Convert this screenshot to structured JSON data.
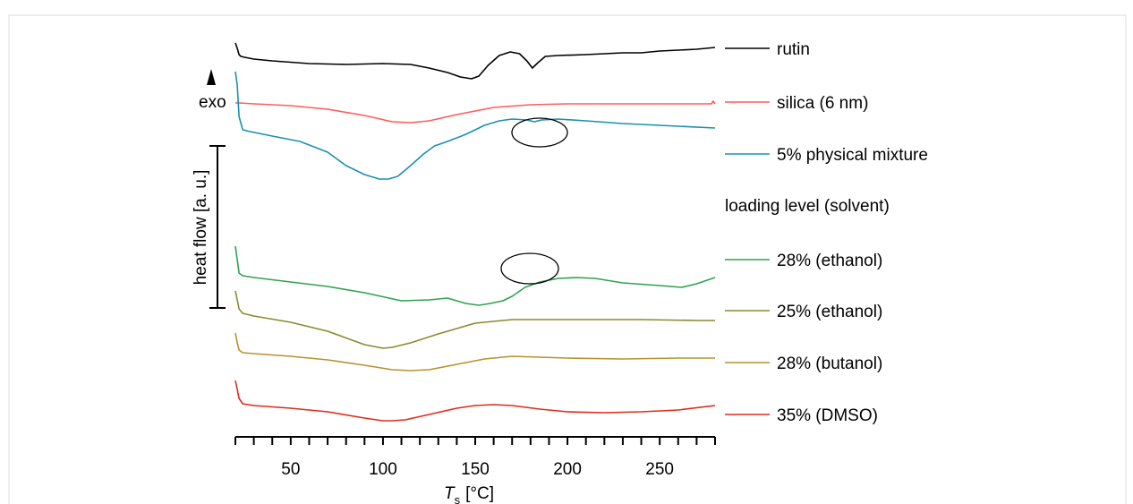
{
  "chart_data": {
    "type": "line",
    "title": "",
    "xlabel": "T",
    "xlabel_sub": "s",
    "xlabel_unit": "[°C]",
    "ylabel": "heat flow [a. u.]",
    "exo_label": "exo",
    "xlim": [
      20,
      280
    ],
    "xticks": [
      50,
      100,
      150,
      200,
      250
    ],
    "xtick_labels": [
      "50",
      "100",
      "150",
      "200",
      "250"
    ],
    "grid": false,
    "legend_placement": "right",
    "legend_heading": "loading level (solvent)",
    "series": [
      {
        "name": "rutin",
        "color": "#000000",
        "x": [
          20,
          21,
          22,
          23,
          25,
          30,
          40,
          60,
          80,
          100,
          115,
          125,
          135,
          142,
          148,
          152,
          157,
          163,
          169,
          174,
          178,
          181,
          184,
          188,
          195,
          210,
          230,
          240,
          250,
          260,
          270,
          280
        ],
        "y": [
          10,
          4,
          -3,
          -5,
          -6,
          -8,
          -10,
          -13,
          -14,
          -13,
          -14,
          -18,
          -23,
          -28,
          -30,
          -27,
          -15,
          -4,
          0,
          -2,
          -10,
          -18,
          -12,
          -5,
          -4,
          -3,
          -1,
          -1,
          1,
          2,
          3,
          5
        ]
      },
      {
        "name": "silica (6 nm)",
        "color": "#ff5b5b",
        "x": [
          20,
          22,
          30,
          50,
          70,
          90,
          105,
          115,
          125,
          140,
          160,
          180,
          200,
          230,
          260,
          278,
          279,
          280
        ],
        "y": [
          -20,
          -20,
          -21,
          -23,
          -27,
          -34,
          -41,
          -42,
          -40,
          -33,
          -25,
          -22,
          -21,
          -21,
          -21,
          -21,
          -18,
          -21
        ],
        "label_value": "silica (6 nm)"
      },
      {
        "name": "5% physical mixture",
        "color": "#1a90b0",
        "x": [
          20,
          21,
          22,
          24,
          28,
          40,
          55,
          70,
          80,
          90,
          98,
          103,
          108,
          115,
          122,
          128,
          135,
          145,
          155,
          163,
          170,
          178,
          182,
          186,
          195,
          210,
          230,
          250,
          280
        ],
        "y": [
          20,
          5,
          -30,
          -45,
          -47,
          -52,
          -58,
          -70,
          -85,
          -95,
          -100,
          -100,
          -97,
          -85,
          -72,
          -63,
          -58,
          -50,
          -40,
          -35,
          -33,
          -34,
          -36,
          -34,
          -33,
          -35,
          -38,
          -40,
          -43
        ]
      },
      {
        "name": "28% (ethanol)",
        "color": "#2ea24f",
        "x": [
          20,
          21,
          22,
          24,
          30,
          50,
          70,
          90,
          110,
          125,
          135,
          145,
          152,
          158,
          165,
          170,
          177,
          185,
          195,
          205,
          215,
          230,
          250,
          262,
          270,
          280
        ],
        "y": [
          -130,
          -145,
          -160,
          -163,
          -165,
          -170,
          -175,
          -182,
          -191,
          -190,
          -188,
          -194,
          -196,
          -194,
          -191,
          -186,
          -176,
          -170,
          -166,
          -165,
          -166,
          -171,
          -174,
          -176,
          -172,
          -165
        ]
      },
      {
        "name": "25% (ethanol)",
        "color": "#8a8a2e",
        "x": [
          20,
          21,
          22,
          24,
          30,
          50,
          70,
          90,
          100,
          105,
          115,
          130,
          150,
          170,
          200,
          240,
          270,
          280
        ],
        "y": [
          -180,
          -190,
          -200,
          -205,
          -208,
          -215,
          -225,
          -240,
          -244,
          -243,
          -238,
          -228,
          -216,
          -212,
          -212,
          -212,
          -213,
          -213
        ]
      },
      {
        "name": "28% (butanol)",
        "color": "#b8912e",
        "x": [
          20,
          21,
          22,
          24,
          30,
          50,
          70,
          90,
          105,
          115,
          125,
          140,
          155,
          170,
          185,
          200,
          230,
          260,
          280
        ],
        "y": [
          -227,
          -238,
          -246,
          -249,
          -250,
          -253,
          -257,
          -263,
          -268,
          -269,
          -268,
          -262,
          -256,
          -253,
          -254,
          -255,
          -256,
          -255,
          -255
        ]
      },
      {
        "name": "35% (DMSO)",
        "color": "#e02a1a",
        "x": [
          20,
          21,
          22,
          24,
          30,
          50,
          70,
          90,
          100,
          105,
          112,
          125,
          140,
          150,
          160,
          170,
          185,
          200,
          220,
          240,
          260,
          280
        ],
        "y": [
          -280,
          -290,
          -300,
          -306,
          -308,
          -311,
          -315,
          -322,
          -325,
          -325,
          -324,
          -318,
          -311,
          -308,
          -307,
          -308,
          -312,
          -315,
          -316,
          -315,
          -313,
          -308
        ]
      }
    ],
    "series_labels": [
      "rutin",
      "silica (6 nm)",
      "5% physical mixture",
      "28% (ethanol)",
      "25% (ethanol)",
      "28% (butanol)",
      "35% (DMSO)"
    ],
    "annotations": [
      {
        "type": "ellipse",
        "target_series": "5% physical mixture",
        "x_center": 184
      },
      {
        "type": "ellipse",
        "target_series": "28% (ethanol)",
        "x_center": 178
      }
    ]
  }
}
